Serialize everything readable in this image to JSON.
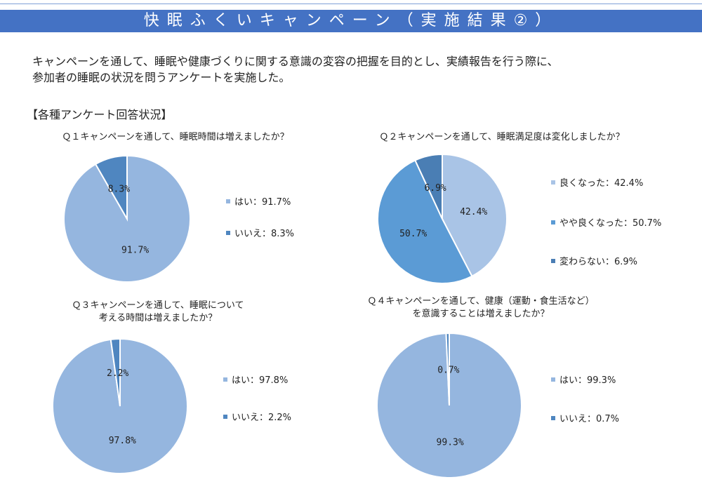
{
  "header": {
    "title": "快眠ふくいキャンペーン（実施結果②）"
  },
  "intro": {
    "line1": "キャンペーンを通して、睡眠や健康づくりに関する意識の変容の把握を目的とし、実績報告を行う際に、",
    "line2": "参加者の睡眠の状況を問うアンケートを実施した。"
  },
  "section_title": "【各種アンケート回答状況】",
  "colors": {
    "header": "#4472c4",
    "light": "#95b6df",
    "light2": "#a9c4e6",
    "medium": "#5b9bd5",
    "dark": "#4a7eb4"
  },
  "chart_data": [
    {
      "type": "pie",
      "title": "Ｑ１キャンペーンを通して、睡眠時間は増えましたか？",
      "categories": [
        "はい",
        "いいえ"
      ],
      "values": [
        91.7,
        8.3
      ],
      "data_labels": [
        "91.7%",
        "8.3%"
      ],
      "legend": [
        "はい：91.7%",
        "いいえ：8.3%"
      ],
      "legend_placement": "right",
      "colors": [
        "#95b6df",
        "#4f86c0"
      ]
    },
    {
      "type": "pie",
      "title": "Ｑ２キャンペーンを通して、睡眠満足度は変化しましたか？",
      "categories": [
        "良くなった",
        "やや良くなった",
        "変わらない"
      ],
      "values": [
        42.4,
        50.7,
        6.9
      ],
      "data_labels": [
        "42.4%",
        "50.7%",
        "6.9%"
      ],
      "legend": [
        "良くなった：42.4%",
        "やや良くなった：50.7%",
        "変わらない：6.9%"
      ],
      "legend_placement": "right",
      "colors": [
        "#a9c4e6",
        "#5b9bd5",
        "#4a7eb4"
      ]
    },
    {
      "type": "pie",
      "title": "Ｑ３キャンペーンを通して、睡眠について",
      "title2": "考える時間は増えましたか？",
      "categories": [
        "はい",
        "いいえ"
      ],
      "values": [
        97.8,
        2.2
      ],
      "data_labels": [
        "97.8%",
        "2.2%"
      ],
      "legend": [
        "はい：97.8%",
        "いいえ：2.2%"
      ],
      "legend_placement": "right",
      "colors": [
        "#95b6df",
        "#4f86c0"
      ]
    },
    {
      "type": "pie",
      "title": "Ｑ４キャンペーンを通して、健康（運動・食生活など）",
      "title2": "を意識することは増えましたか？",
      "categories": [
        "はい",
        "いいえ"
      ],
      "values": [
        99.3,
        0.7
      ],
      "data_labels": [
        "99.3%",
        "0.7%"
      ],
      "legend": [
        "はい：99.3%",
        "いいえ：0.7%"
      ],
      "legend_placement": "right",
      "colors": [
        "#95b6df",
        "#4f86c0"
      ]
    }
  ]
}
